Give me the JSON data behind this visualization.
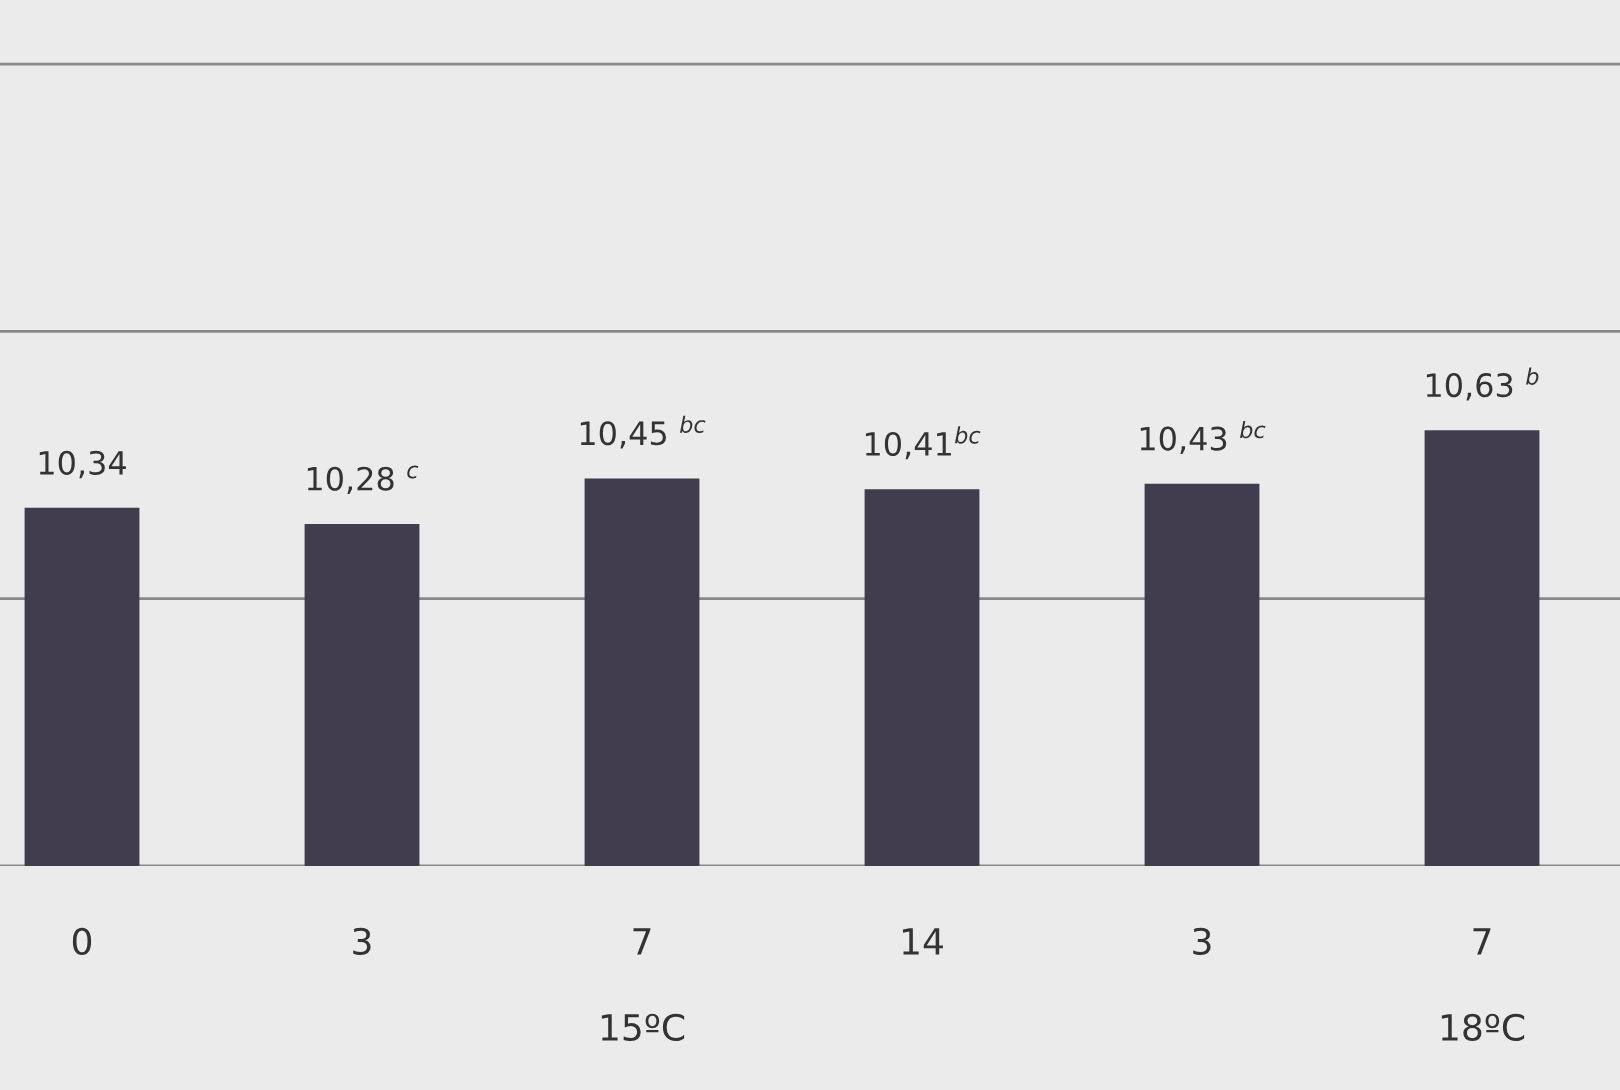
{
  "chart_data": {
    "type": "bar",
    "categories": [
      "0",
      "3",
      "7",
      "14",
      "3",
      "7"
    ],
    "values": [
      10.34,
      10.28,
      10.45,
      10.41,
      10.43,
      10.63
    ],
    "value_labels": [
      "10,34",
      "10,28 $^{c}$",
      "10,45 $^{bc}$",
      "10,41$^{bc}$",
      "10,43 $^{bc}$",
      "10,63 $^{b}$"
    ],
    "color": "#413d4e",
    "ylim": [
      9,
      12.24
    ],
    "yticks": [
      9,
      10,
      11,
      12
    ],
    "grid": "y",
    "tick_labels": "x",
    "annotations": [
      "15ºC",
      "18ºC"
    ]
  }
}
